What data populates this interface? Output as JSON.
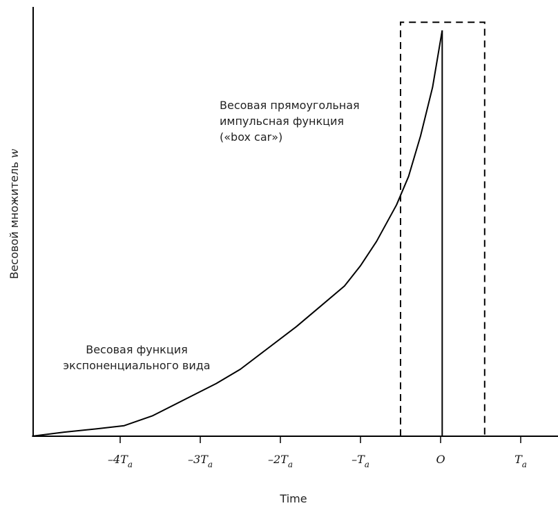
{
  "chart_data": {
    "type": "line",
    "title": "",
    "xlabel": "Time",
    "ylabel": "Весовой множитель",
    "ylabel_symbol": "w",
    "xlim": [
      -5,
      1.4
    ],
    "ylim": [
      0,
      1.06
    ],
    "grid": false,
    "ticks": [
      {
        "x": -4,
        "label": "–4T",
        "sub": "a"
      },
      {
        "x": -3,
        "label": "–3T",
        "sub": "a"
      },
      {
        "x": -2,
        "label": "–2T",
        "sub": "a"
      },
      {
        "x": -1,
        "label": "–T",
        "sub": "a"
      },
      {
        "x": 0,
        "label": "O",
        "sub": ""
      },
      {
        "x": 1,
        "label": "T",
        "sub": "a"
      }
    ],
    "series": [
      {
        "name": "Весовая функция экспоненциального вида",
        "style": "solid",
        "x": [
          -5.1,
          -4.7,
          -4.3,
          -3.95,
          -3.6,
          -3.2,
          -2.8,
          -2.5,
          -2.2,
          -1.8,
          -1.5,
          -1.2,
          -1.0,
          -0.8,
          -0.55,
          -0.4,
          -0.25,
          -0.1,
          0.02
        ],
        "y": [
          0.0,
          0.01,
          0.018,
          0.026,
          0.05,
          0.09,
          0.13,
          0.165,
          0.21,
          0.27,
          0.32,
          0.37,
          0.42,
          0.48,
          0.57,
          0.64,
          0.74,
          0.86,
          1.0
        ]
      },
      {
        "name": "Весовая прямоугольная импульсная функция («box car»)",
        "style": "dashed",
        "x": [
          -0.5,
          0.55
        ],
        "y": [
          1.02,
          1.02
        ]
      }
    ],
    "origin_line_x": 0.02,
    "annotations": [
      {
        "lines": [
          "Весовая прямоугольная",
          "импульсная функция",
          "(«box car»)"
        ]
      },
      {
        "lines": [
          "Весовая функция",
          "экспоненциального вида"
        ]
      }
    ]
  }
}
